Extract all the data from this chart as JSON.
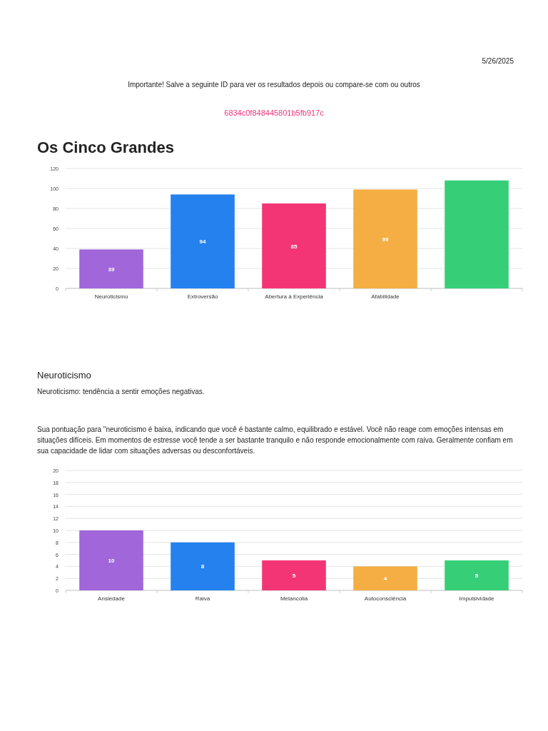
{
  "chart_data": [
    {
      "type": "bar",
      "title": "Os Cinco Grandes",
      "annotations": [
        "5/26/2025",
        "Importante! Salve a seguinte ID para ver os resultados depois ou compare-se com ou outros",
        "6834c0f848445801b5fb917c"
      ],
      "categories": [
        "Neuroticismo",
        "Extroversão",
        "Abertura à Experiência",
        "Afabilidade",
        null
      ],
      "values": [
        39,
        94,
        85,
        99,
        108
      ],
      "colors": [
        "#a066da",
        "#2481ee",
        "#f33576",
        "#f4ae44",
        "#36cf78"
      ],
      "value_labels": [
        "39",
        "94",
        "85",
        "99",
        null
      ],
      "ylim": [
        0,
        120
      ],
      "yticks": [
        0,
        20,
        40,
        60,
        80,
        100,
        120
      ],
      "grid": "y"
    },
    {
      "type": "bar",
      "title": "Neuroticismo",
      "subtitle": "Neuroticismo: tendência a sentir emoções negativas.",
      "annotations": [
        "Sua pontuação para \"neuroticismo é baixa, indicando que você é bastante calmo, equilibrado e estável. Você não reage com emoções intensas em situações difíceis. Em momentos de estresse você tende a ser bastante tranquilo e não responde emocionalmente com raiva. Geralmente confiam em sua capacidade de lidar com situações adversas ou desconfortáveis."
      ],
      "categories": [
        "Ansiedade",
        "Raiva",
        "Melancolia",
        "Autoconsciência",
        "Impulsividade"
      ],
      "values": [
        10,
        8,
        5,
        4,
        5
      ],
      "colors": [
        "#a066da",
        "#2481ee",
        "#f33576",
        "#f4ae44",
        "#36cf78"
      ],
      "data_labels": true,
      "ylim": [
        0,
        20
      ],
      "yticks": [
        0,
        2,
        4,
        6,
        8,
        10,
        12,
        14,
        16,
        18,
        20
      ],
      "grid": "y"
    }
  ]
}
